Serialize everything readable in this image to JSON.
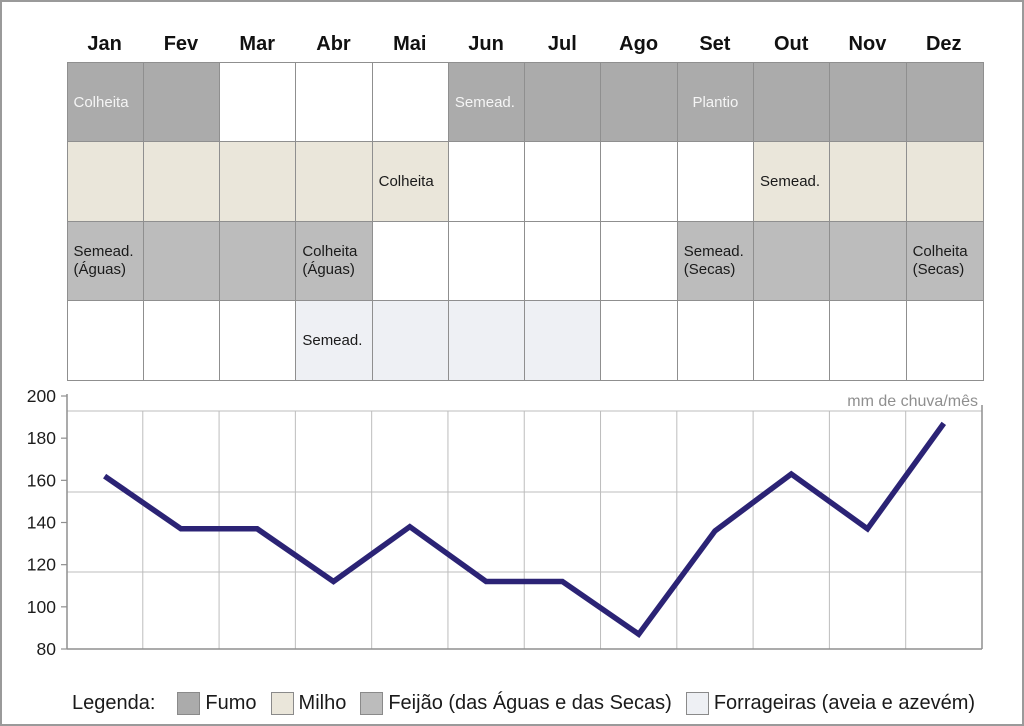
{
  "months": [
    "Jan",
    "Fev",
    "Mar",
    "Abr",
    "Mai",
    "Jun",
    "Jul",
    "Ago",
    "Set",
    "Out",
    "Nov",
    "Dez"
  ],
  "calendar": {
    "rows": [
      {
        "crop": "Fumo",
        "fill": "#ababab",
        "label_color": "#f5f5f5",
        "shaded": [
          "Jan",
          "Fev",
          "Jun",
          "Jul",
          "Ago",
          "Set",
          "Out",
          "Nov",
          "Dez"
        ],
        "labels": {
          "Jan": "Colheita",
          "Jun": "Semead.",
          "Set": "Plantio"
        },
        "centered": [
          "Set"
        ]
      },
      {
        "crop": "Milho",
        "fill": "#eae6da",
        "label_color": "#1a1a1a",
        "shaded": [
          "Jan",
          "Fev",
          "Mar",
          "Abr",
          "Mai",
          "Out",
          "Nov",
          "Dez"
        ],
        "labels": {
          "Mai": "Colheita",
          "Out": "Semead."
        },
        "centered": []
      },
      {
        "crop": "Feijão (das Águas e das Secas)",
        "fill": "#bcbcbc",
        "label_color": "#1a1a1a",
        "shaded": [
          "Jan",
          "Fev",
          "Mar",
          "Abr",
          "Set",
          "Out",
          "Nov",
          "Dez"
        ],
        "labels": {
          "Jan": "Semead.\n(Águas)",
          "Abr": "Colheita\n(Águas)",
          "Set": "Semead.\n(Secas)",
          "Dez": "Colheita\n(Secas)"
        },
        "centered": []
      },
      {
        "crop": "Forrageiras (aveia e azevém)",
        "fill": "#eef0f4",
        "label_color": "#1a1a1a",
        "shaded": [
          "Abr",
          "Mai",
          "Jun",
          "Jul"
        ],
        "labels": {
          "Abr": "Semead."
        },
        "centered": []
      }
    ]
  },
  "chart_data": {
    "type": "line",
    "categories": [
      "Jan",
      "Fev",
      "Mar",
      "Abr",
      "Mai",
      "Jun",
      "Jul",
      "Ago",
      "Set",
      "Out",
      "Nov",
      "Dez"
    ],
    "values": [
      162,
      137,
      137,
      112,
      138,
      112,
      112,
      87,
      136,
      163,
      137,
      187
    ],
    "ylabel": "mm de chuva/mês",
    "ylim": [
      80,
      200
    ],
    "yticks": [
      80,
      100,
      120,
      140,
      160,
      180,
      200
    ],
    "line_color": "#2b2375",
    "grid": true,
    "legend_position": "bottom"
  },
  "legend": {
    "title": "Legenda:",
    "items": [
      {
        "label": "Fumo",
        "color": "#ababab"
      },
      {
        "label": "Milho",
        "color": "#eae6da"
      },
      {
        "label": "Feijão (das Águas e das Secas)",
        "color": "#bcbcbc"
      },
      {
        "label": "Forrageiras (aveia e azevém)",
        "color": "#eef0f4"
      }
    ]
  }
}
